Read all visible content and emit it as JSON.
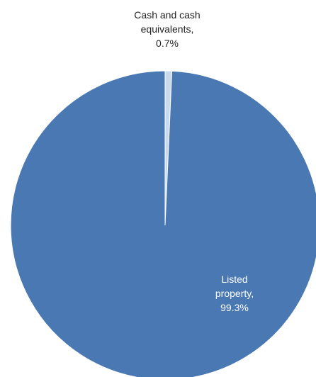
{
  "chart_data": {
    "type": "pie",
    "slices": [
      {
        "name": "Cash and cash equivalents",
        "value": 0.7,
        "display": "0.7%",
        "label_lines": [
          "Cash and cash",
          "equivalents,",
          "0.7%"
        ],
        "color": "#c9d9ee"
      },
      {
        "name": "Listed property",
        "value": 99.3,
        "display": "99.3%",
        "label_lines": [
          "Listed",
          "property,",
          "99.3%"
        ],
        "color": "#4a78b3"
      }
    ],
    "title": "",
    "legend": "none",
    "start_angle": "top",
    "direction": "clockwise"
  }
}
